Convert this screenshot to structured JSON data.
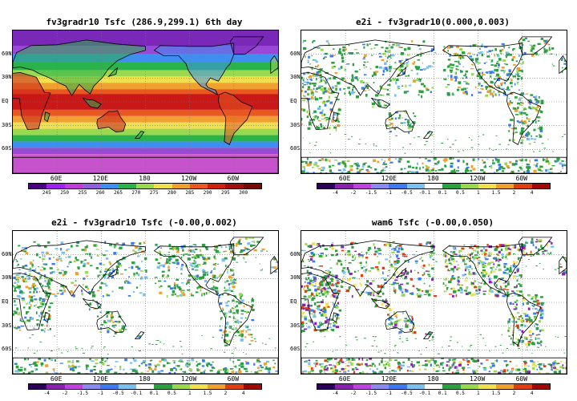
{
  "panels": [
    {
      "title": "fv3gradr10 Tsfc (286.9,299.1) 6th day",
      "type": "absolute",
      "colorbar_ticks": [
        "245",
        "250",
        "255",
        "260",
        "265",
        "270",
        "275",
        "280",
        "285",
        "290",
        "295",
        "300"
      ],
      "colorbar_colors": [
        "#4b0082",
        "#a020f0",
        "#c13cd6",
        "#8f5fe0",
        "#3f8ff0",
        "#29b34b",
        "#9ad850",
        "#f0e050",
        "#f0a030",
        "#e85820",
        "#d02010",
        "#a01010",
        "#780808"
      ]
    },
    {
      "title": "e2i - fv3gradr10(0.000,0.003)",
      "type": "diff",
      "colorbar_ticks": [
        "-4",
        "-2",
        "-1.5",
        "-1",
        "-0.5",
        "-0.1",
        "0.1",
        "0.5",
        "1",
        "1.5",
        "2",
        "4"
      ],
      "colorbar_colors": [
        "#2a0058",
        "#8a1fb0",
        "#c040e0",
        "#8a8af0",
        "#3c7af0",
        "#7ac0f0",
        "#ffffff",
        "#2aa040",
        "#9ad850",
        "#f0e050",
        "#f0a030",
        "#e04010",
        "#a00808"
      ]
    },
    {
      "title": "e2i - fv3gradr10 Tsfc (-0.00,0.002)",
      "type": "diff",
      "colorbar_ticks": [
        "-4",
        "-2",
        "-1.5",
        "-1",
        "-0.5",
        "-0.1",
        "0.1",
        "0.5",
        "1",
        "1.5",
        "2",
        "4"
      ],
      "colorbar_colors": [
        "#2a0058",
        "#8a1fb0",
        "#c040e0",
        "#8a8af0",
        "#3c7af0",
        "#7ac0f0",
        "#ffffff",
        "#2aa040",
        "#9ad850",
        "#f0e050",
        "#f0a030",
        "#e04010",
        "#a00808"
      ]
    },
    {
      "title": "wam6 Tsfc (-0.00,0.050)",
      "type": "diff",
      "colorbar_ticks": [
        "-4",
        "-2",
        "-1.5",
        "-1",
        "-0.5",
        "-0.1",
        "0.1",
        "0.5",
        "1",
        "1.5",
        "2",
        "4"
      ],
      "colorbar_colors": [
        "#2a0058",
        "#8a1fb0",
        "#c040e0",
        "#8a8af0",
        "#3c7af0",
        "#7ac0f0",
        "#ffffff",
        "#2aa040",
        "#9ad850",
        "#f0e050",
        "#f0a030",
        "#e04010",
        "#a00808"
      ]
    }
  ],
  "lat_labels": [
    "60N",
    "30N",
    "EQ",
    "30S",
    "60S"
  ],
  "lon_labels": [
    "60E",
    "120E",
    "180",
    "120W",
    "60W"
  ]
}
